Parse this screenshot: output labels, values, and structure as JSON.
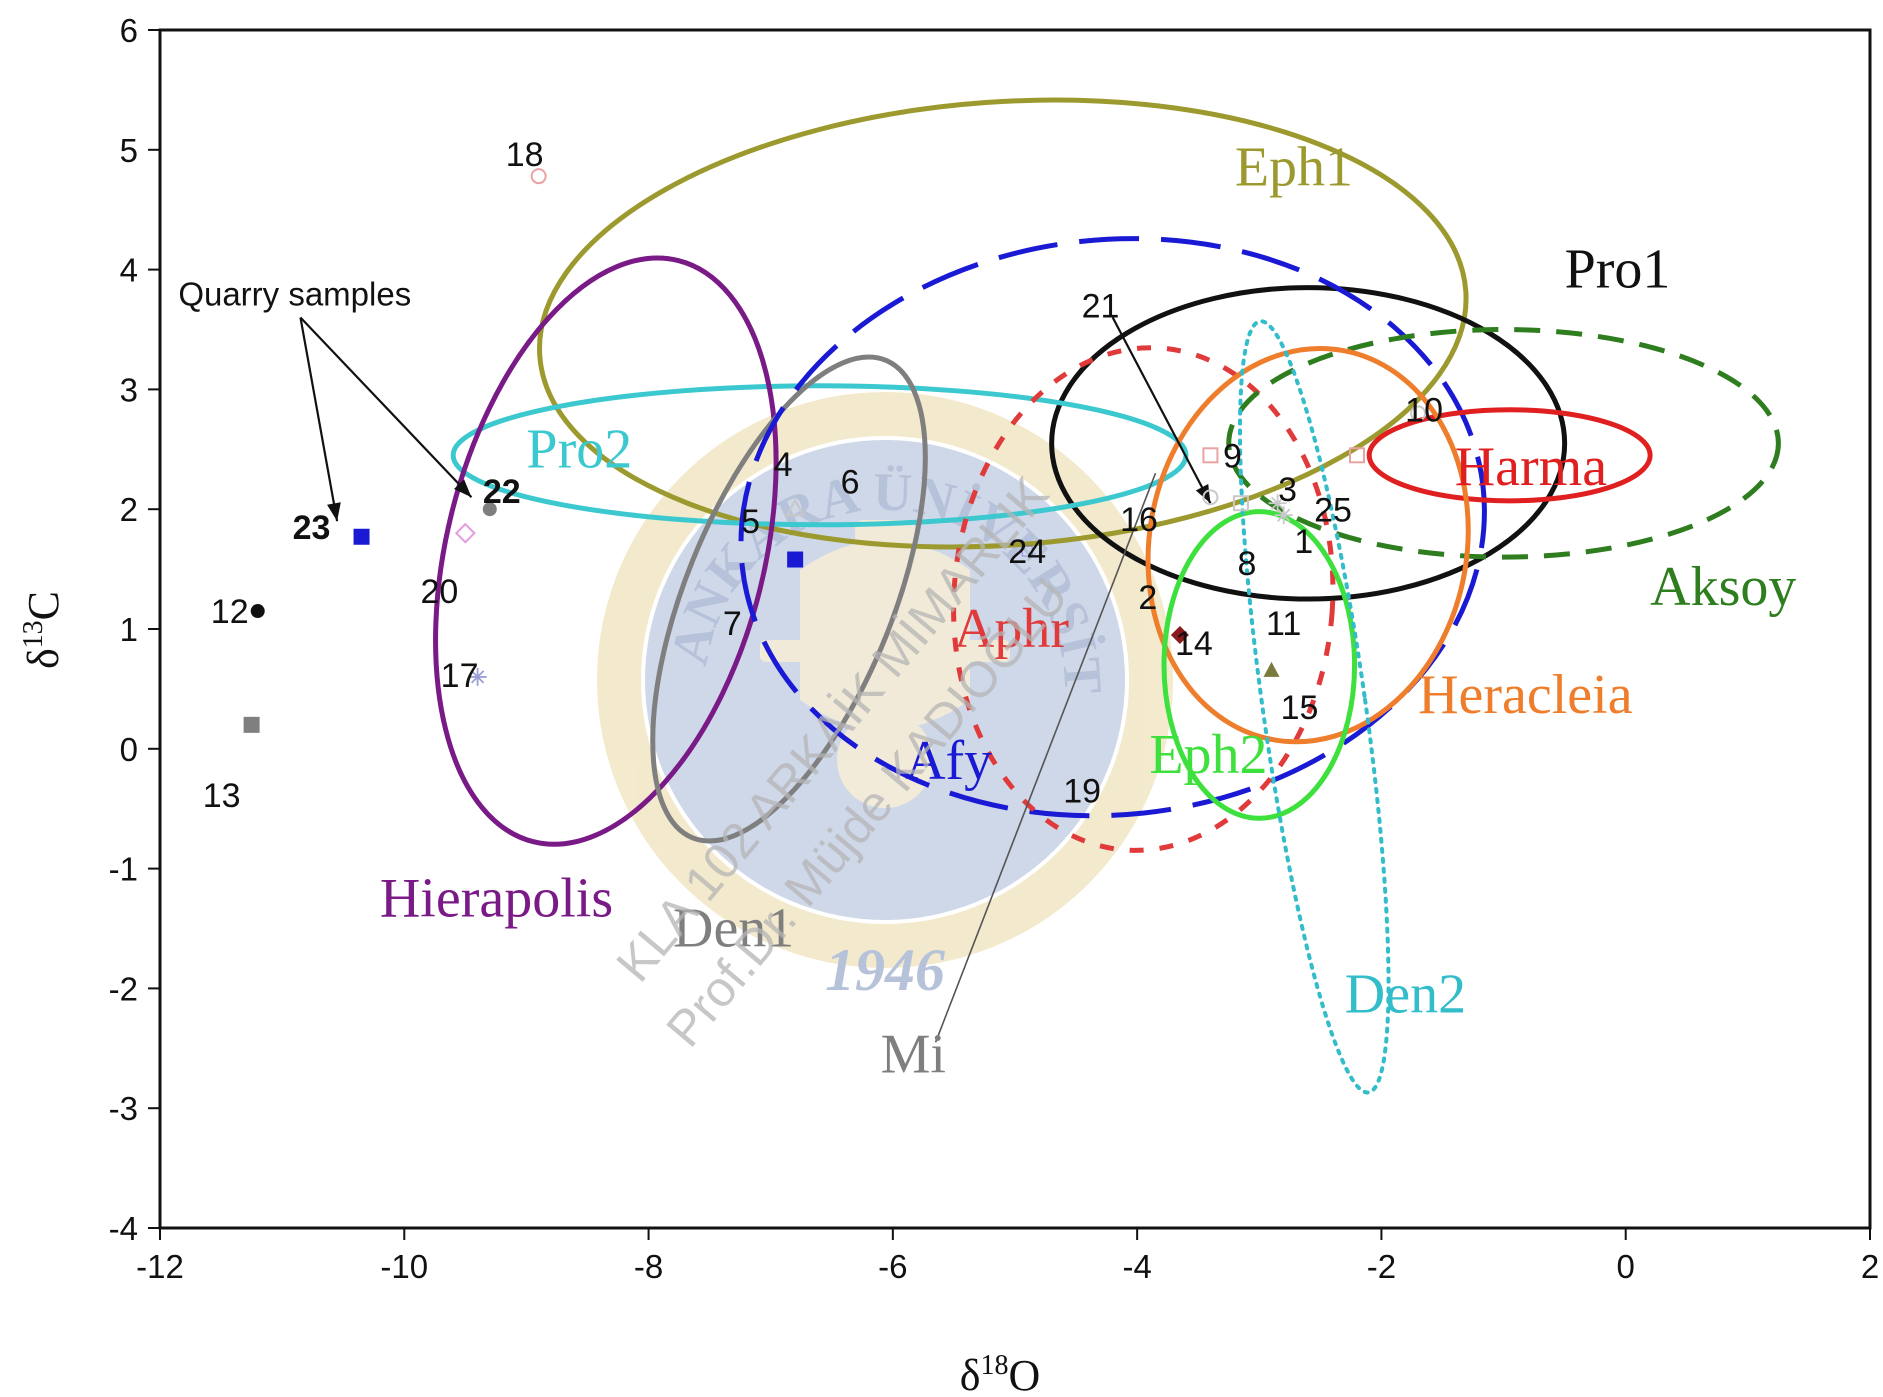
{
  "chart_data": {
    "type": "scatter",
    "xlabel": {
      "base": "δ",
      "sup": "18",
      "tail": "O"
    },
    "ylabel": {
      "base": "δ",
      "sup": "13",
      "tail": "C"
    },
    "xlim": [
      -12,
      2
    ],
    "ylim": [
      -4,
      6
    ],
    "xticks": [
      "-12",
      "-10",
      "-8",
      "-6",
      "-4",
      "-2",
      "0",
      "2"
    ],
    "yticks": [
      "-4",
      "-3",
      "-2",
      "-1",
      "0",
      "1",
      "2",
      "3",
      "4",
      "5",
      "6"
    ],
    "grid": false,
    "ellipses": [
      {
        "name": "Eph1",
        "cx": -5.1,
        "cy": 3.55,
        "rx": 3.8,
        "ry": 1.85,
        "angle": 4,
        "color": "#9c9a2e",
        "dash": "solid",
        "label_x": -3.2,
        "label_y": 4.7
      },
      {
        "name": "Pro1",
        "cx": -2.6,
        "cy": 2.55,
        "rx": 2.1,
        "ry": 1.3,
        "angle": 0,
        "color": "#111111",
        "dash": "solid",
        "label_x": -0.5,
        "label_y": 3.85
      },
      {
        "name": "Pro2",
        "cx": -6.6,
        "cy": 2.45,
        "rx": 3.0,
        "ry": 0.58,
        "angle": 0,
        "color": "#3cc8cf",
        "dash": "solid",
        "label_x": -9.0,
        "label_y": 2.35
      },
      {
        "name": "Hierapolis",
        "cx": -8.35,
        "cy": 1.65,
        "rx": 1.3,
        "ry": 2.5,
        "angle": -14,
        "color": "#7a1a87",
        "dash": "solid",
        "label_x": -10.2,
        "label_y": -1.4
      },
      {
        "name": "Den1",
        "cx": -6.85,
        "cy": 1.25,
        "rx": 0.85,
        "ry": 2.15,
        "angle": -22,
        "color": "#7f7f7f",
        "dash": "solid",
        "label_x": -7.8,
        "label_y": -1.65
      },
      {
        "name": "Afy",
        "cx": -4.2,
        "cy": 1.85,
        "rx": 3.05,
        "ry": 2.4,
        "angle": 6,
        "color": "#1a1ad4",
        "dash": "long",
        "label_x": -5.9,
        "label_y": -0.25
      },
      {
        "name": "Aphr",
        "cx": -3.95,
        "cy": 1.25,
        "rx": 1.55,
        "ry": 2.1,
        "angle": -4,
        "color": "#e03a3a",
        "dash": "short",
        "label_x": -5.5,
        "label_y": 0.85
      },
      {
        "name": "Aksoy",
        "cx": -1.0,
        "cy": 2.55,
        "rx": 2.25,
        "ry": 0.95,
        "angle": 0,
        "color": "#2e7d1e",
        "dash": "medium",
        "label_x": 0.2,
        "label_y": 1.2
      },
      {
        "name": "Harma",
        "cx": -0.95,
        "cy": 2.45,
        "rx": 1.15,
        "ry": 0.38,
        "angle": 0,
        "color": "#e02020",
        "dash": "solid",
        "label_x": -1.4,
        "label_y": 2.2
      },
      {
        "name": "Heracleia",
        "cx": -2.6,
        "cy": 1.7,
        "rx": 1.3,
        "ry": 1.65,
        "angle": -10,
        "color": "#ee7d2c",
        "dash": "solid",
        "label_x": -1.7,
        "label_y": 0.3
      },
      {
        "name": "Eph2",
        "cx": -3.0,
        "cy": 0.7,
        "rx": 0.78,
        "ry": 1.28,
        "angle": 0,
        "color": "#3de03d",
        "dash": "solid",
        "label_x": -3.9,
        "label_y": -0.2
      },
      {
        "name": "Den2",
        "cx": -2.55,
        "cy": 0.35,
        "rx": 0.42,
        "ry": 3.25,
        "angle": 8,
        "color": "#33bcc9",
        "dash": "dot",
        "label_x": -2.3,
        "label_y": -2.2
      }
    ],
    "points": [
      {
        "label": "1",
        "x": -2.8,
        "y": 1.95,
        "lx": 20,
        "ly": 26,
        "marker": "star",
        "color": "#c8c8c8"
      },
      {
        "label": "2",
        "x": -3.65,
        "y": 1.2,
        "lx": -32,
        "ly": -8,
        "marker": "none",
        "color": "#999999"
      },
      {
        "label": "3",
        "x": -2.85,
        "y": 2.05,
        "lx": 10,
        "ly": -14,
        "marker": "star",
        "color": "#c8c8c8"
      },
      {
        "label": "4",
        "x": -6.8,
        "y": 2.0,
        "lx": -12,
        "ly": -45,
        "marker": "triangle-open",
        "color": "#c8c8c8"
      },
      {
        "label": "5",
        "x": -7.05,
        "y": 2.0,
        "lx": -14,
        "ly": 12,
        "marker": "none",
        "color": "#999999"
      },
      {
        "label": "6",
        "x": -6.35,
        "y": 2.35,
        "lx": 0,
        "ly": 14,
        "marker": "none",
        "color": "#999999"
      },
      {
        "label": "7",
        "x": -7.2,
        "y": 1.15,
        "lx": -14,
        "ly": 12,
        "marker": "none",
        "color": "#999999"
      },
      {
        "label": "8",
        "x": -3.15,
        "y": 1.65,
        "lx": 6,
        "ly": 12,
        "marker": "none",
        "color": "#999999"
      },
      {
        "label": "9",
        "x": -3.4,
        "y": 2.45,
        "lx": 22,
        "ly": 0,
        "marker": "square-open",
        "color": "#e9a3a3"
      },
      {
        "label": "10",
        "x": -1.7,
        "y": 2.8,
        "lx": 6,
        "ly": -4,
        "marker": "circle-open",
        "color": "#c8c8c8"
      },
      {
        "label": "11",
        "x": -2.85,
        "y": 1.05,
        "lx": 6,
        "ly": 0,
        "marker": "none",
        "color": "#999999"
      },
      {
        "label": "12",
        "x": -11.2,
        "y": 1.15,
        "lx": -28,
        "ly": 0,
        "marker": "circle",
        "color": "#111111"
      },
      {
        "label": "13",
        "x": -11.25,
        "y": 0.2,
        "lx": -30,
        "ly": 70,
        "marker": "square",
        "color": "#7f7f7f"
      },
      {
        "label": "14",
        "x": -3.65,
        "y": 0.95,
        "lx": 14,
        "ly": 8,
        "marker": "diamond",
        "color": "#8b1a1a"
      },
      {
        "label": "15",
        "x": -2.9,
        "y": 0.65,
        "lx": 28,
        "ly": 36,
        "marker": "triangle",
        "color": "#7a7a3a"
      },
      {
        "label": "16",
        "x": -4.05,
        "y": 1.95,
        "lx": 8,
        "ly": 4,
        "marker": "none",
        "color": "#999999"
      },
      {
        "label": "17",
        "x": -9.4,
        "y": 0.6,
        "lx": -18,
        "ly": -2,
        "marker": "star",
        "color": "#9aa0d6"
      },
      {
        "label": "18",
        "x": -8.9,
        "y": 4.78,
        "lx": -14,
        "ly": -22,
        "marker": "circle-open",
        "color": "#e9a3a3"
      },
      {
        "label": "19",
        "x": -4.45,
        "y": -0.35,
        "lx": 0,
        "ly": 0,
        "marker": "none",
        "color": "#999999"
      },
      {
        "label": "20",
        "x": -9.5,
        "y": 1.8,
        "lx": -26,
        "ly": 58,
        "marker": "diamond-open",
        "color": "#e59be0"
      },
      {
        "label": "21",
        "x": -4.3,
        "y": 3.7,
        "lx": 0,
        "ly": 0,
        "marker": "none",
        "color": "#999999"
      },
      {
        "label": "22",
        "x": -9.3,
        "y": 2.0,
        "lx": 12,
        "ly": -18,
        "marker": "circle",
        "color": "#7f7f7f",
        "bold": true
      },
      {
        "label": "23",
        "x": -10.35,
        "y": 1.77,
        "lx": -50,
        "ly": -10,
        "marker": "square",
        "color": "#1a1ad4",
        "bold": true
      },
      {
        "label": "24",
        "x": -4.9,
        "y": 1.65,
        "lx": 0,
        "ly": 0,
        "marker": "square-blue-small",
        "color": "#1a1ad4"
      },
      {
        "label": "25",
        "x": -2.2,
        "y": 2.45,
        "lx": -24,
        "ly": 54,
        "marker": "square-open",
        "color": "#e9a3a3"
      }
    ],
    "extra_markers": [
      {
        "x": -6.8,
        "y": 1.58,
        "marker": "square",
        "color": "#1a1ad4"
      },
      {
        "x": -3.15,
        "y": 2.05,
        "marker": "square-open",
        "color": "#c8c8c8"
      },
      {
        "x": -3.4,
        "y": 2.1,
        "marker": "circle-open",
        "color": "#c8c8c8"
      }
    ],
    "annotations": [
      {
        "text": "Quarry samples",
        "x": -11.85,
        "y": 3.7
      },
      {
        "text": "Mi",
        "x": -6.1,
        "y": -2.7
      }
    ],
    "arrows": [
      {
        "from_x": -10.85,
        "from_y": 3.6,
        "to_x": -10.55,
        "to_y": 1.9
      },
      {
        "from_x": -10.85,
        "from_y": 3.6,
        "to_x": -9.45,
        "to_y": 2.1
      },
      {
        "from_x": -4.2,
        "from_y": 3.6,
        "to_x": -3.4,
        "to_y": 2.05
      }
    ],
    "mi_line": {
      "from_x": -5.65,
      "from_y": -2.45,
      "to_x": -3.85,
      "to_y": 2.3
    }
  },
  "watermark": {
    "line1": "KLA 102 ARKAİK MİMARLIK",
    "line2": "Prof.Dr. Müjde KADIOĞLU"
  },
  "seal": {
    "top_text": "ANKARA ÜNİVERSİTESİ",
    "year": "1946",
    "colors": {
      "ring": "#f2e6c4",
      "inner": "#c6d2e6",
      "text": "#aab8d3",
      "emblem": "#f4ead0"
    }
  }
}
